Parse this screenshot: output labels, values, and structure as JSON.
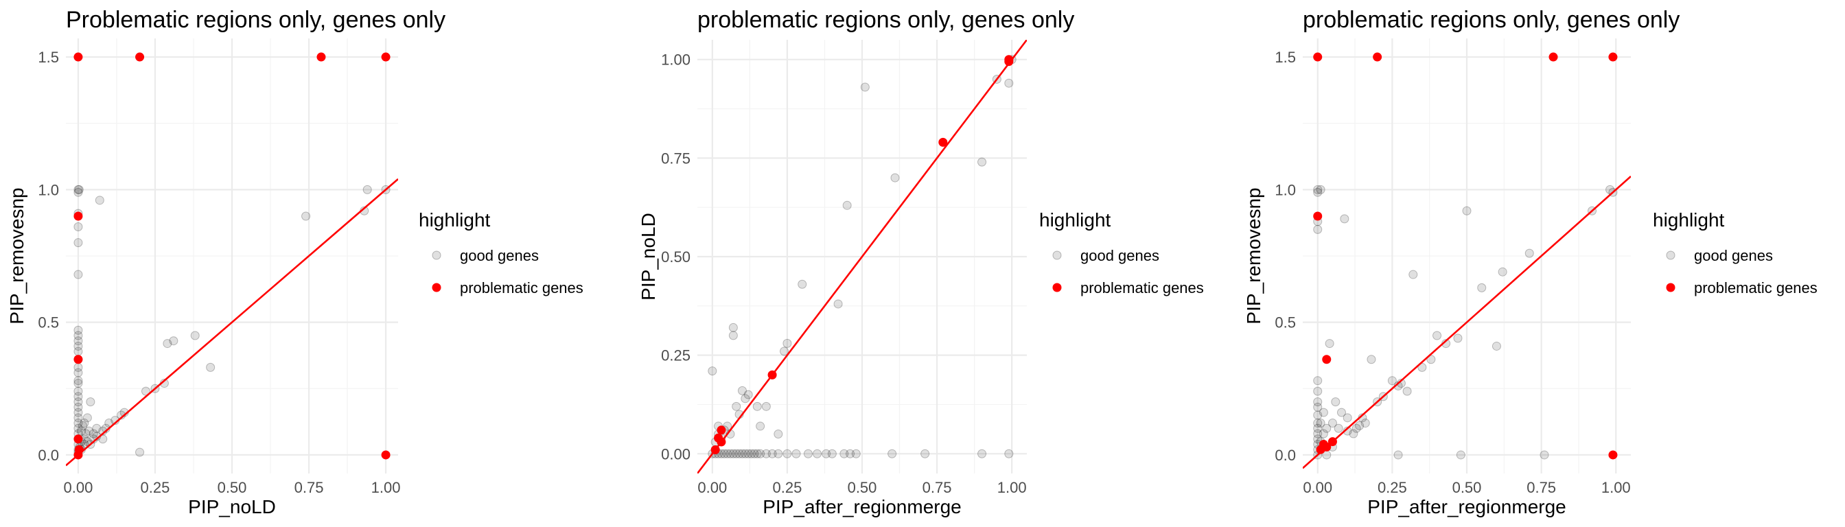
{
  "chart_data": [
    {
      "type": "scatter",
      "title": "Problematic regions only, genes only",
      "xlabel": "PIP_noLD",
      "ylabel": "PIP_removesnp",
      "xlim": [
        -0.04,
        1.04
      ],
      "ylim": [
        -0.07,
        1.57
      ],
      "x_ticks": [
        0,
        0.25,
        0.5,
        0.75,
        1
      ],
      "x_tick_labels": [
        "0.00",
        "0.25",
        "0.50",
        "0.75",
        "1.00"
      ],
      "y_ticks": [
        0,
        0.5,
        1,
        1.5
      ],
      "y_tick_labels": [
        "0.0",
        "0.5",
        "1.0",
        "1.5"
      ],
      "reference_line": {
        "slope": 1,
        "intercept": 0,
        "color": "#ff0000"
      },
      "legend": {
        "title": "highlight",
        "position": "right",
        "entries": [
          "good genes",
          "problematic genes"
        ]
      },
      "series": [
        {
          "name": "good genes",
          "color": "#000000",
          "points": [
            [
              0,
              1.0
            ],
            [
              0,
              0.99
            ],
            [
              0.003,
              1.0
            ],
            [
              0,
              0.91
            ],
            [
              0,
              0.86
            ],
            [
              0,
              0.8
            ],
            [
              0,
              0.68
            ],
            [
              0,
              0.47
            ],
            [
              0,
              0.45
            ],
            [
              0,
              0.43
            ],
            [
              0,
              0.41
            ],
            [
              0,
              0.39
            ],
            [
              0,
              0.36
            ],
            [
              0,
              0.33
            ],
            [
              0,
              0.31
            ],
            [
              0,
              0.28
            ],
            [
              0,
              0.27
            ],
            [
              0,
              0.24
            ],
            [
              0,
              0.22
            ],
            [
              0,
              0.2
            ],
            [
              0,
              0.18
            ],
            [
              0,
              0.16
            ],
            [
              0,
              0.14
            ],
            [
              0,
              0.12
            ],
            [
              0,
              0.1
            ],
            [
              0,
              0.08
            ],
            [
              0,
              0.06
            ],
            [
              0,
              0.04
            ],
            [
              0,
              0.02
            ],
            [
              0,
              0.01
            ],
            [
              0.005,
              0.03
            ],
            [
              0.01,
              0.05
            ],
            [
              0.01,
              0.02
            ],
            [
              0.01,
              0.09
            ],
            [
              0.015,
              0.11
            ],
            [
              0.02,
              0.04
            ],
            [
              0.02,
              0.06
            ],
            [
              0.02,
              0.12
            ],
            [
              0.025,
              0.08
            ],
            [
              0.03,
              0.05
            ],
            [
              0.03,
              0.14
            ],
            [
              0.035,
              0.09
            ],
            [
              0.04,
              0.04
            ],
            [
              0.04,
              0.2
            ],
            [
              0.05,
              0.06
            ],
            [
              0.05,
              0.08
            ],
            [
              0.06,
              0.1
            ],
            [
              0.06,
              0.07
            ],
            [
              0.07,
              0.96
            ],
            [
              0.08,
              0.06
            ],
            [
              0.08,
              0.09
            ],
            [
              0.09,
              0.1
            ],
            [
              0.1,
              0.12
            ],
            [
              0.12,
              0.13
            ],
            [
              0.14,
              0.15
            ],
            [
              0.15,
              0.16
            ],
            [
              0.2,
              0.01
            ],
            [
              0.22,
              0.24
            ],
            [
              0.25,
              0.25
            ],
            [
              0.28,
              0.27
            ],
            [
              0.29,
              0.42
            ],
            [
              0.31,
              0.43
            ],
            [
              0.38,
              0.45
            ],
            [
              0.43,
              0.33
            ],
            [
              0.74,
              0.9
            ],
            [
              0.93,
              0.92
            ],
            [
              0.94,
              1.0
            ],
            [
              1.0,
              1.0
            ]
          ]
        },
        {
          "name": "problematic genes",
          "color": "#ff0000",
          "points": [
            [
              0,
              1.5
            ],
            [
              0.2,
              1.5
            ],
            [
              0.79,
              1.5
            ],
            [
              1.0,
              1.5
            ],
            [
              0,
              0.9
            ],
            [
              0,
              0.36
            ],
            [
              0,
              0.06
            ],
            [
              0.003,
              0.02
            ],
            [
              0,
              0.0
            ],
            [
              1.0,
              0.0
            ]
          ]
        }
      ]
    },
    {
      "type": "scatter",
      "title": "problematic regions only, genes only",
      "xlabel": "PIP_after_regionmerge",
      "ylabel": "PIP_noLD",
      "xlim": [
        -0.05,
        1.05
      ],
      "ylim": [
        -0.05,
        1.05
      ],
      "x_ticks": [
        0,
        0.25,
        0.5,
        0.75,
        1
      ],
      "x_tick_labels": [
        "0.00",
        "0.25",
        "0.50",
        "0.75",
        "1.00"
      ],
      "y_ticks": [
        0,
        0.25,
        0.5,
        0.75,
        1
      ],
      "y_tick_labels": [
        "0.00",
        "0.25",
        "0.50",
        "0.75",
        "1.00"
      ],
      "reference_line": {
        "slope": 1,
        "intercept": 0,
        "color": "#ff0000"
      },
      "legend": {
        "title": "highlight",
        "position": "right",
        "entries": [
          "good genes",
          "problematic genes"
        ]
      },
      "series": [
        {
          "name": "good genes",
          "color": "#000000",
          "points": [
            [
              0,
              0.21
            ],
            [
              0,
              0.0
            ],
            [
              0.01,
              0.0
            ],
            [
              0.02,
              0.0
            ],
            [
              0.03,
              0.0
            ],
            [
              0.04,
              0.0
            ],
            [
              0.05,
              0.0
            ],
            [
              0.06,
              0.0
            ],
            [
              0.07,
              0.0
            ],
            [
              0.08,
              0.0
            ],
            [
              0.09,
              0.0
            ],
            [
              0.1,
              0.0
            ],
            [
              0.11,
              0.0
            ],
            [
              0.12,
              0.0
            ],
            [
              0.13,
              0.0
            ],
            [
              0.14,
              0.0
            ],
            [
              0.15,
              0.0
            ],
            [
              0.16,
              0.0
            ],
            [
              0.18,
              0.0
            ],
            [
              0.2,
              0.0
            ],
            [
              0.22,
              0.0
            ],
            [
              0.25,
              0.0
            ],
            [
              0.28,
              0.0
            ],
            [
              0.32,
              0.0
            ],
            [
              0.35,
              0.0
            ],
            [
              0.38,
              0.0
            ],
            [
              0.4,
              0.0
            ],
            [
              0.44,
              0.0
            ],
            [
              0.46,
              0.0
            ],
            [
              0.48,
              0.0
            ],
            [
              0.6,
              0.0
            ],
            [
              0.71,
              0.0
            ],
            [
              0.9,
              0.0
            ],
            [
              0.99,
              0.0
            ],
            [
              0.01,
              0.01
            ],
            [
              0.01,
              0.03
            ],
            [
              0.02,
              0.05
            ],
            [
              0.02,
              0.07
            ],
            [
              0.03,
              0.04
            ],
            [
              0.04,
              0.06
            ],
            [
              0.05,
              0.07
            ],
            [
              0.06,
              0.05
            ],
            [
              0.07,
              0.32
            ],
            [
              0.07,
              0.3
            ],
            [
              0.08,
              0.12
            ],
            [
              0.09,
              0.1
            ],
            [
              0.1,
              0.16
            ],
            [
              0.11,
              0.14
            ],
            [
              0.12,
              0.15
            ],
            [
              0.15,
              0.12
            ],
            [
              0.16,
              0.07
            ],
            [
              0.18,
              0.12
            ],
            [
              0.22,
              0.05
            ],
            [
              0.24,
              0.26
            ],
            [
              0.25,
              0.28
            ],
            [
              0.3,
              0.43
            ],
            [
              0.45,
              0.63
            ],
            [
              0.51,
              0.93
            ],
            [
              0.61,
              0.7
            ],
            [
              0.9,
              0.74
            ],
            [
              0.99,
              0.94
            ],
            [
              1.0,
              1.0
            ],
            [
              0.95,
              0.95
            ],
            [
              0.2,
              0.2
            ],
            [
              0.42,
              0.38
            ]
          ]
        },
        {
          "name": "problematic genes",
          "color": "#ff0000",
          "points": [
            [
              0.99,
              1.0
            ],
            [
              0.99,
              0.995
            ],
            [
              0.77,
              0.79
            ],
            [
              0.2,
              0.2
            ],
            [
              0.03,
              0.06
            ],
            [
              0.02,
              0.04
            ],
            [
              0.03,
              0.03
            ],
            [
              0.01,
              0.01
            ]
          ]
        }
      ]
    },
    {
      "type": "scatter",
      "title": "problematic regions only, genes only",
      "xlabel": "PIP_after_regionmerge",
      "ylabel": "PIP_removesnp",
      "xlim": [
        -0.05,
        1.05
      ],
      "ylim": [
        -0.07,
        1.57
      ],
      "x_ticks": [
        0,
        0.25,
        0.5,
        0.75,
        1
      ],
      "x_tick_labels": [
        "0.00",
        "0.25",
        "0.50",
        "0.75",
        "1.00"
      ],
      "y_ticks": [
        0,
        0.5,
        1,
        1.5
      ],
      "y_tick_labels": [
        "0.0",
        "0.5",
        "1.0",
        "1.5"
      ],
      "reference_line": {
        "slope": 1,
        "intercept": 0,
        "color": "#ff0000"
      },
      "legend": {
        "title": "highlight",
        "position": "right",
        "entries": [
          "good genes",
          "problematic genes"
        ]
      },
      "series": [
        {
          "name": "good genes",
          "color": "#000000",
          "points": [
            [
              0,
              1.0
            ],
            [
              0,
              0.99
            ],
            [
              0.01,
              1.0
            ],
            [
              0,
              0.88
            ],
            [
              0,
              0.85
            ],
            [
              0,
              0.28
            ],
            [
              0,
              0.24
            ],
            [
              0,
              0.2
            ],
            [
              0,
              0.18
            ],
            [
              0,
              0.15
            ],
            [
              0,
              0.12
            ],
            [
              0,
              0.1
            ],
            [
              0,
              0.08
            ],
            [
              0,
              0.06
            ],
            [
              0,
              0.04
            ],
            [
              0,
              0.02
            ],
            [
              0,
              0.0
            ],
            [
              0.01,
              0.05
            ],
            [
              0.01,
              0.12
            ],
            [
              0.02,
              0.08
            ],
            [
              0.02,
              0.16
            ],
            [
              0.03,
              0.1
            ],
            [
              0.04,
              0.42
            ],
            [
              0.05,
              0.12
            ],
            [
              0.06,
              0.2
            ],
            [
              0.07,
              0.1
            ],
            [
              0.08,
              0.16
            ],
            [
              0.09,
              0.89
            ],
            [
              0.1,
              0.14
            ],
            [
              0.12,
              0.08
            ],
            [
              0.13,
              0.1
            ],
            [
              0.14,
              0.11
            ],
            [
              0.15,
              0.14
            ],
            [
              0.16,
              0.12
            ],
            [
              0.18,
              0.36
            ],
            [
              0.2,
              0.2
            ],
            [
              0.22,
              0.22
            ],
            [
              0.25,
              0.28
            ],
            [
              0.27,
              0.26
            ],
            [
              0.28,
              0.27
            ],
            [
              0.3,
              0.24
            ],
            [
              0.32,
              0.68
            ],
            [
              0.35,
              0.33
            ],
            [
              0.38,
              0.36
            ],
            [
              0.4,
              0.45
            ],
            [
              0.43,
              0.42
            ],
            [
              0.47,
              0.44
            ],
            [
              0.5,
              0.92
            ],
            [
              0.55,
              0.63
            ],
            [
              0.62,
              0.69
            ],
            [
              0.6,
              0.41
            ],
            [
              0.71,
              0.76
            ],
            [
              0.92,
              0.92
            ],
            [
              0.98,
              1.0
            ],
            [
              0.99,
              0.99
            ],
            [
              0.27,
              0.0
            ],
            [
              0.48,
              0.0
            ],
            [
              0.76,
              0.0
            ],
            [
              0.03,
              0.0
            ],
            [
              0.05,
              0.03
            ],
            [
              0.1,
              0.09
            ]
          ]
        },
        {
          "name": "problematic genes",
          "color": "#ff0000",
          "points": [
            [
              0,
              1.5
            ],
            [
              0.2,
              1.5
            ],
            [
              0.79,
              1.5
            ],
            [
              0.99,
              1.5
            ],
            [
              0,
              0.9
            ],
            [
              0.03,
              0.36
            ],
            [
              0.01,
              0.02
            ],
            [
              0.02,
              0.04
            ],
            [
              0.03,
              0.03
            ],
            [
              0.05,
              0.05
            ],
            [
              0.99,
              0.0
            ]
          ]
        }
      ]
    }
  ]
}
